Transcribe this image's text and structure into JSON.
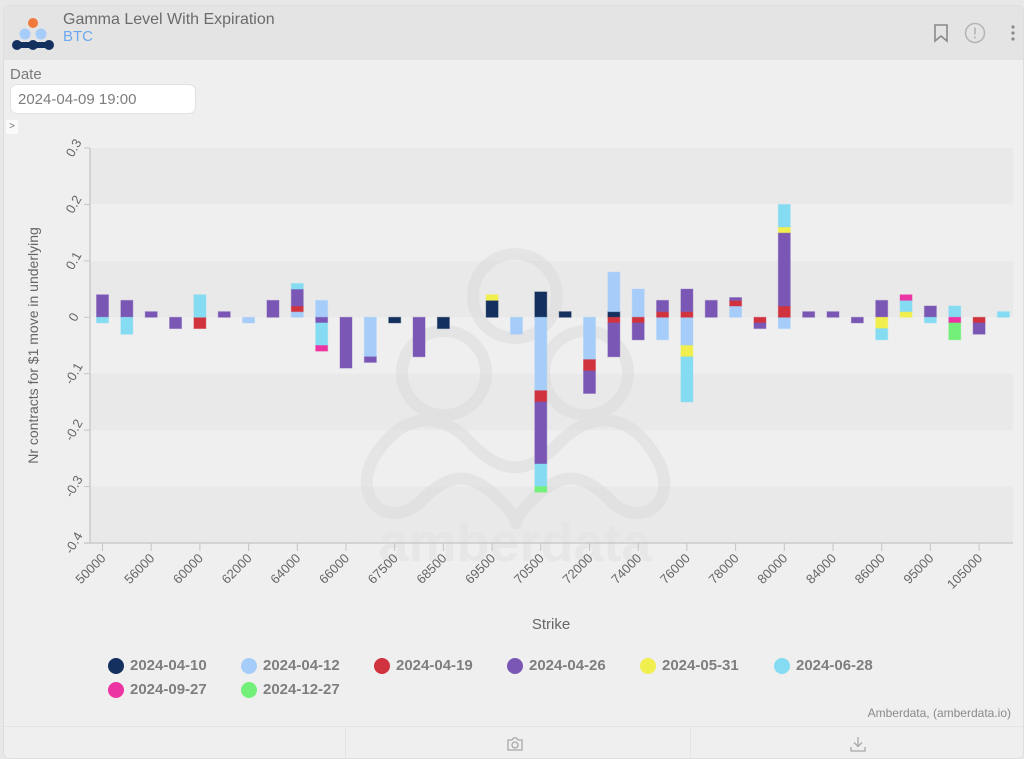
{
  "header": {
    "title": "Gamma Level With Expiration",
    "subtitle": "BTC",
    "icons": [
      "bookmark-icon",
      "info-alert-icon",
      "more-vertical-icon"
    ]
  },
  "filters": {
    "date_label": "Date",
    "date_value": "2024-04-09 19:00",
    "expander": ">"
  },
  "watermark": "amberdata",
  "credit": "Amberdata, (amberdata.io)",
  "footer": {
    "icons": [
      "camera-icon",
      "download-icon"
    ]
  },
  "legend": [
    {
      "label": "2024-04-10",
      "color": "#13305f"
    },
    {
      "label": "2024-04-12",
      "color": "#a6cdf9"
    },
    {
      "label": "2024-04-19",
      "color": "#d0323e"
    },
    {
      "label": "2024-04-26",
      "color": "#7a57b4"
    },
    {
      "label": "2024-05-31",
      "color": "#f0ef4d"
    },
    {
      "label": "2024-06-28",
      "color": "#85dcf2"
    },
    {
      "label": "2024-09-27",
      "color": "#ec34a2"
    },
    {
      "label": "2024-12-27",
      "color": "#73f07a"
    }
  ],
  "chart_data": {
    "type": "bar",
    "stacked": true,
    "title": "Gamma Level With Expiration",
    "xlabel": "Strike",
    "ylabel": "Nr contracts for $1 move in underlying",
    "ylim": [
      -0.4,
      0.3
    ],
    "yticks": [
      0.3,
      0.2,
      0.1,
      0,
      -0.1,
      -0.2,
      -0.3,
      -0.4
    ],
    "xtick_labels": [
      "50000",
      "56000",
      "60000",
      "62000",
      "64000",
      "66000",
      "67500",
      "68500",
      "69500",
      "70500",
      "72000",
      "74000",
      "76000",
      "78000",
      "80000",
      "84000",
      "86000",
      "95000",
      "105000"
    ],
    "categories": [
      "50000",
      "52000",
      "56000",
      "58000",
      "60000",
      "61000",
      "62000",
      "63000",
      "64000",
      "65000",
      "66000",
      "67000",
      "67500",
      "68000",
      "68500",
      "69000",
      "69500",
      "70000",
      "70500",
      "71000",
      "72000",
      "73000",
      "74000",
      "75000",
      "76000",
      "77000",
      "78000",
      "79000",
      "80000",
      "82000",
      "84000",
      "85000",
      "86000",
      "90000",
      "95000",
      "100000",
      "105000",
      "110000"
    ],
    "series": [
      {
        "name": "2024-04-10",
        "values": [
          0,
          0,
          0,
          0,
          0,
          0,
          0,
          0,
          0,
          0,
          0,
          0,
          -0.01,
          0,
          -0.02,
          0,
          0.03,
          0,
          0.045,
          0.01,
          0,
          0.01,
          0,
          0,
          0,
          0,
          0,
          0,
          0,
          0,
          0,
          0,
          0,
          0,
          0,
          0,
          0,
          0
        ]
      },
      {
        "name": "2024-04-12",
        "values": [
          0,
          0,
          0,
          0,
          0,
          0,
          -0.01,
          0,
          0.01,
          0.03,
          0,
          -0.07,
          0,
          0,
          0,
          0,
          0,
          -0.03,
          -0.13,
          0,
          -0.075,
          0.07,
          0.05,
          -0.04,
          -0.05,
          0,
          0.02,
          0,
          -0.02,
          0,
          0,
          0,
          0,
          0,
          0,
          0,
          0,
          0
        ]
      },
      {
        "name": "2024-04-19",
        "values": [
          0,
          0,
          0,
          0,
          -0.02,
          0,
          0,
          0,
          0.01,
          0,
          0,
          0,
          0,
          0,
          0,
          0,
          0,
          0,
          -0.02,
          0,
          -0.02,
          -0.01,
          -0.01,
          0.01,
          0.01,
          0,
          0.01,
          -0.01,
          0.02,
          0,
          0,
          0,
          0,
          0,
          0,
          0,
          -0.01,
          0
        ]
      },
      {
        "name": "2024-04-26",
        "values": [
          0.04,
          0.03,
          0.01,
          -0.02,
          0,
          0.01,
          0,
          0.03,
          0.03,
          -0.01,
          -0.09,
          -0.01,
          0,
          -0.07,
          0,
          0,
          0,
          0,
          -0.11,
          0,
          -0.04,
          -0.06,
          -0.03,
          0.02,
          0.04,
          0.03,
          0.005,
          -0.01,
          0.13,
          0.01,
          0.01,
          -0.01,
          0.03,
          0,
          0.02,
          0,
          -0.02,
          0
        ]
      },
      {
        "name": "2024-05-31",
        "values": [
          0,
          0,
          0,
          0,
          0,
          0,
          0,
          0,
          0,
          0,
          0,
          0,
          0,
          0,
          0,
          0,
          0.01,
          0,
          0,
          0,
          0,
          0,
          0,
          0,
          -0.02,
          0,
          0,
          0,
          0.01,
          0,
          0,
          0,
          -0.02,
          0.01,
          0,
          0,
          0,
          0
        ]
      },
      {
        "name": "2024-06-28",
        "values": [
          -0.01,
          -0.03,
          0,
          0,
          0.04,
          0,
          0,
          0,
          0.01,
          -0.04,
          0,
          0,
          0,
          0,
          0,
          0,
          0,
          0,
          -0.04,
          0,
          0,
          0,
          0,
          0,
          -0.08,
          0,
          0,
          0,
          0.04,
          0,
          0,
          0,
          -0.02,
          0.02,
          -0.01,
          0.02,
          0,
          0.01
        ]
      },
      {
        "name": "2024-09-27",
        "values": [
          0,
          0,
          0,
          0,
          0,
          0,
          0,
          0,
          0,
          -0.01,
          0,
          0,
          0,
          0,
          0,
          0,
          0,
          0,
          0,
          0,
          0,
          0,
          0,
          0,
          0,
          0,
          0,
          0,
          0,
          0,
          0,
          0,
          0,
          0.01,
          0,
          -0.01,
          0,
          0
        ]
      },
      {
        "name": "2024-12-27",
        "values": [
          0,
          0,
          0,
          0,
          0,
          0,
          0,
          0,
          0,
          0,
          0,
          0,
          0,
          0,
          0,
          0,
          0,
          0,
          -0.01,
          0,
          0,
          0,
          0,
          0,
          0,
          0,
          0,
          0,
          0,
          0,
          0,
          0,
          0,
          0,
          0,
          -0.03,
          0,
          0
        ]
      }
    ],
    "grid": "alternating horizontal bands",
    "legend_position": "bottom"
  }
}
